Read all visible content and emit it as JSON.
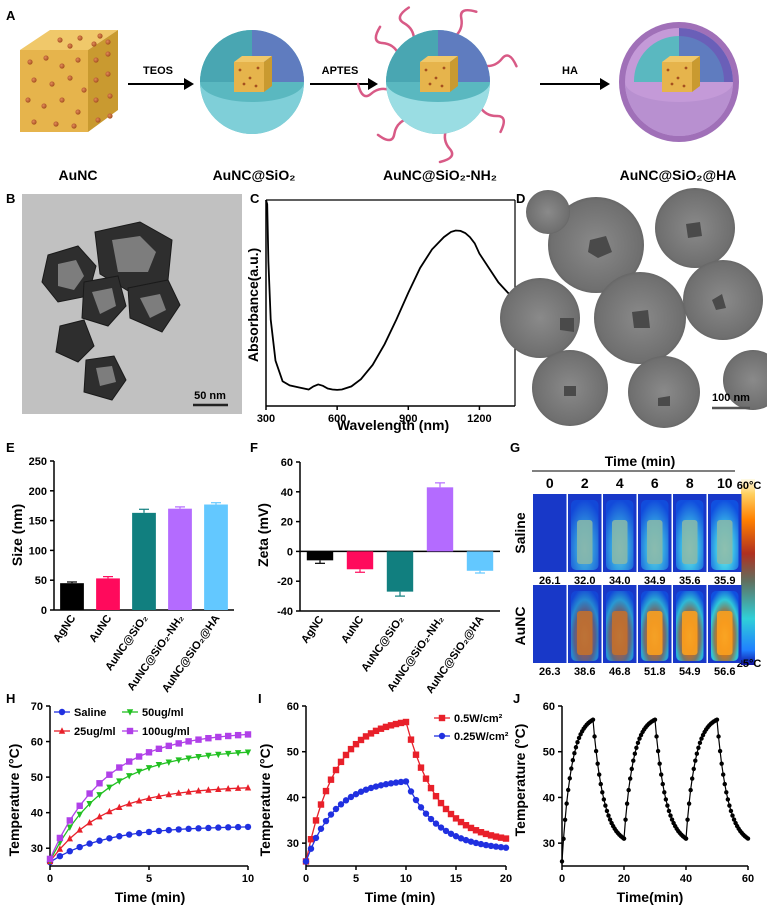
{
  "panel_labels": [
    "A",
    "B",
    "C",
    "D",
    "E",
    "F",
    "G",
    "H",
    "I",
    "J"
  ],
  "schematic": {
    "arrows": [
      "TEOS",
      "APTES",
      "HA"
    ],
    "names": [
      "AuNC",
      "AuNC@SiO₂",
      "AuNC@SiO₂-NH₂",
      "AuNC@SiO₂@HA"
    ]
  },
  "tem": {
    "scale_b": "50 nm",
    "scale_d": "100 nm"
  },
  "colors": {
    "black": "#000000",
    "pink": "#ff0a5c",
    "teal": "#117f7f",
    "violet": "#b46bff",
    "sky": "#63c8ff",
    "red": "#e8202a",
    "blue": "#2030e0",
    "green": "#22c022",
    "purple": "#b040e8"
  },
  "chart_data": [
    {
      "id": "C",
      "type": "line",
      "title": "",
      "xlabel": "Wavelength (nm)",
      "ylabel": "Absorbance(a.u.)",
      "xlim": [
        300,
        1350
      ],
      "xticks": [
        300,
        600,
        900,
        1200
      ],
      "x": [
        300,
        305,
        310,
        320,
        340,
        370,
        400,
        440,
        480,
        500,
        520,
        540,
        560,
        580,
        600,
        620,
        660,
        700,
        750,
        800,
        850,
        900,
        950,
        1000,
        1050,
        1080,
        1100,
        1120,
        1140,
        1160,
        1180,
        1200,
        1240,
        1280,
        1320,
        1350
      ],
      "y": [
        1.0,
        0.98,
        0.7,
        0.42,
        0.22,
        0.12,
        0.1,
        0.09,
        0.08,
        0.095,
        0.105,
        0.098,
        0.085,
        0.08,
        0.078,
        0.08,
        0.095,
        0.13,
        0.2,
        0.3,
        0.42,
        0.55,
        0.67,
        0.76,
        0.82,
        0.845,
        0.852,
        0.85,
        0.84,
        0.82,
        0.79,
        0.74,
        0.67,
        0.6,
        0.55,
        0.52
      ]
    },
    {
      "id": "E",
      "type": "bar",
      "ylabel": "Size (nm)",
      "ylim": [
        0,
        250
      ],
      "yticks": [
        0,
        50,
        100,
        150,
        200,
        250
      ],
      "categories": [
        "AgNC",
        "AuNC",
        "AuNC@SiO₂",
        "AuNC@SiO₂-NH₂",
        "AuNC@SiO₂@HA"
      ],
      "values": [
        45,
        53,
        163,
        170,
        177
      ],
      "errors": [
        2,
        3,
        6,
        3,
        3
      ]
    },
    {
      "id": "F",
      "type": "bar",
      "ylabel": "Zeta (mV)",
      "ylim": [
        -40,
        60
      ],
      "yticks": [
        -40,
        -20,
        0,
        20,
        40,
        60
      ],
      "categories": [
        "AgNC",
        "AuNC",
        "AuNC@SiO₂",
        "AuNC@SiO₂-NH₂",
        "AuNC@SiO₂@HA"
      ],
      "values": [
        -6,
        -12,
        -27,
        43,
        -13
      ],
      "errors": [
        2,
        2,
        3,
        3,
        1.5
      ]
    },
    {
      "id": "G",
      "type": "heatmap",
      "title": "Time (min)",
      "times": [
        "0",
        "2",
        "4",
        "6",
        "8",
        "10"
      ],
      "rows": [
        {
          "label": "Saline",
          "temps": [
            "26.1",
            "32.0",
            "34.0",
            "34.9",
            "35.6",
            "35.9"
          ]
        },
        {
          "label": "AuNC",
          "temps": [
            "26.3",
            "38.6",
            "46.8",
            "51.8",
            "54.9",
            "56.6"
          ]
        }
      ],
      "scale_max": "60°C",
      "scale_min": "25°C"
    },
    {
      "id": "H",
      "type": "line",
      "xlabel": "Time (min)",
      "ylabel": "Temperature (°C)",
      "xlim": [
        0,
        10
      ],
      "ylim": [
        25,
        70
      ],
      "xticks": [
        0,
        5,
        10
      ],
      "yticks": [
        30,
        40,
        50,
        60,
        70
      ],
      "series": [
        {
          "name": "Saline",
          "color": "#2030e0",
          "marker": "circle",
          "start": 26.1,
          "end": 36
        },
        {
          "name": "25ug/ml",
          "color": "#e8202a",
          "marker": "triangle-up",
          "start": 26.3,
          "end": 47
        },
        {
          "name": "50ug/ml",
          "color": "#22c022",
          "marker": "triangle-down",
          "start": 26.5,
          "end": 57
        },
        {
          "name": "100ug/ml",
          "color": "#b040e8",
          "marker": "square",
          "start": 27,
          "end": 62
        }
      ]
    },
    {
      "id": "I",
      "type": "line",
      "xlabel": "Time (min)",
      "ylabel": "Temperature (°C)",
      "xlim": [
        0,
        20
      ],
      "ylim": [
        25,
        60
      ],
      "xticks": [
        0,
        5,
        10,
        15,
        20
      ],
      "yticks": [
        30,
        40,
        50,
        60
      ],
      "series": [
        {
          "name": "0.5W/cm²",
          "color": "#e8202a",
          "marker": "square",
          "start": 26,
          "peak": 56.5,
          "end": 31
        },
        {
          "name": "0.25W/cm²",
          "color": "#2030e0",
          "marker": "circle",
          "start": 26,
          "peak": 43.5,
          "end": 29
        }
      ]
    },
    {
      "id": "J",
      "type": "line",
      "xlabel": "Time(min)",
      "ylabel": "Temperature (°C)",
      "xlim": [
        0,
        60
      ],
      "ylim": [
        25,
        60
      ],
      "xticks": [
        0,
        20,
        40,
        60
      ],
      "yticks": [
        30,
        40,
        50,
        60
      ],
      "cycles": 3,
      "min": 26,
      "peak": 57,
      "trough": 31
    }
  ]
}
